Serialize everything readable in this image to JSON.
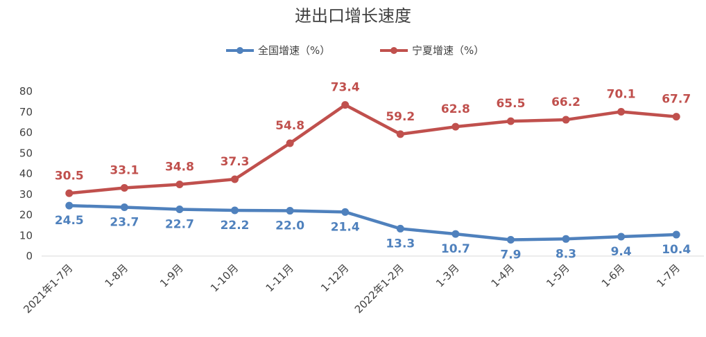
{
  "chart_data": {
    "type": "line",
    "title": "进出口增长速度",
    "categories": [
      "2021年1-7月",
      "1-8月",
      "1-9月",
      "1-10月",
      "1-11月",
      "1-12月",
      "2022年1-2月",
      "1-3月",
      "1-4月",
      "1-5月",
      "1-6月",
      "1-7月"
    ],
    "ylim": [
      0,
      80
    ],
    "yticks": [
      0,
      10,
      20,
      30,
      40,
      50,
      60,
      70,
      80
    ],
    "grid": false,
    "legend_position": "top",
    "series": [
      {
        "name": "全国增速（%）",
        "color": "#4f81bd",
        "label_color": "#4f81bd",
        "values": [
          24.5,
          23.7,
          22.7,
          22.2,
          22.0,
          21.4,
          13.3,
          10.7,
          7.9,
          8.3,
          9.4,
          10.4
        ]
      },
      {
        "name": "宁夏增速（%）",
        "color": "#c0504d",
        "label_color": "#c0504d",
        "values": [
          30.5,
          33.1,
          34.8,
          37.3,
          54.8,
          73.4,
          59.2,
          62.8,
          65.5,
          66.2,
          70.1,
          67.7
        ]
      }
    ]
  }
}
